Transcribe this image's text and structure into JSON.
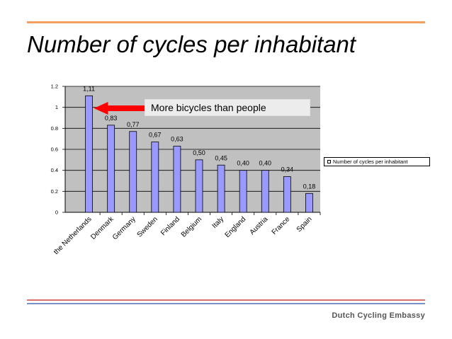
{
  "slide": {
    "title": "Number of cycles per inhabitant",
    "footer": "Dutch Cycling Embassy",
    "callout": "More bicycles than people"
  },
  "colors": {
    "bar_fill": "#9999ff",
    "bar_stroke": "#000000",
    "plot_bg": "#c0c0c0",
    "arrow": "#ff0000",
    "accent_orange": "#f5a060",
    "footer_red": "#d9706a",
    "footer_blue": "#7d8fc4"
  },
  "chart_data": {
    "type": "bar",
    "title": "",
    "xlabel": "",
    "ylabel": "",
    "categories": [
      "the Netherlands",
      "Denmark",
      "Germany",
      "Sweden",
      "Finland",
      "Belgium",
      "Italy",
      "England",
      "Austria",
      "France",
      "Spain"
    ],
    "series": [
      {
        "name": "Number of cycles per inhabitant",
        "values": [
          1.11,
          0.83,
          0.77,
          0.67,
          0.63,
          0.5,
          0.45,
          0.4,
          0.4,
          0.34,
          0.18
        ],
        "labels": [
          "1,11",
          "0,83",
          "0,77",
          "0,67",
          "0,63",
          "0,50",
          "0,45",
          "0,40",
          "0,40",
          "0,34",
          "0,18"
        ]
      }
    ],
    "ylim": [
      0,
      1.2
    ],
    "yticks": [
      0,
      0.2,
      0.4,
      0.6,
      0.8,
      1,
      1.2
    ],
    "ytick_labels": [
      "0",
      "0.2",
      "0.4",
      "0.6",
      "0.8",
      "1",
      "1.2"
    ],
    "grid": true,
    "legend_position": "right"
  }
}
